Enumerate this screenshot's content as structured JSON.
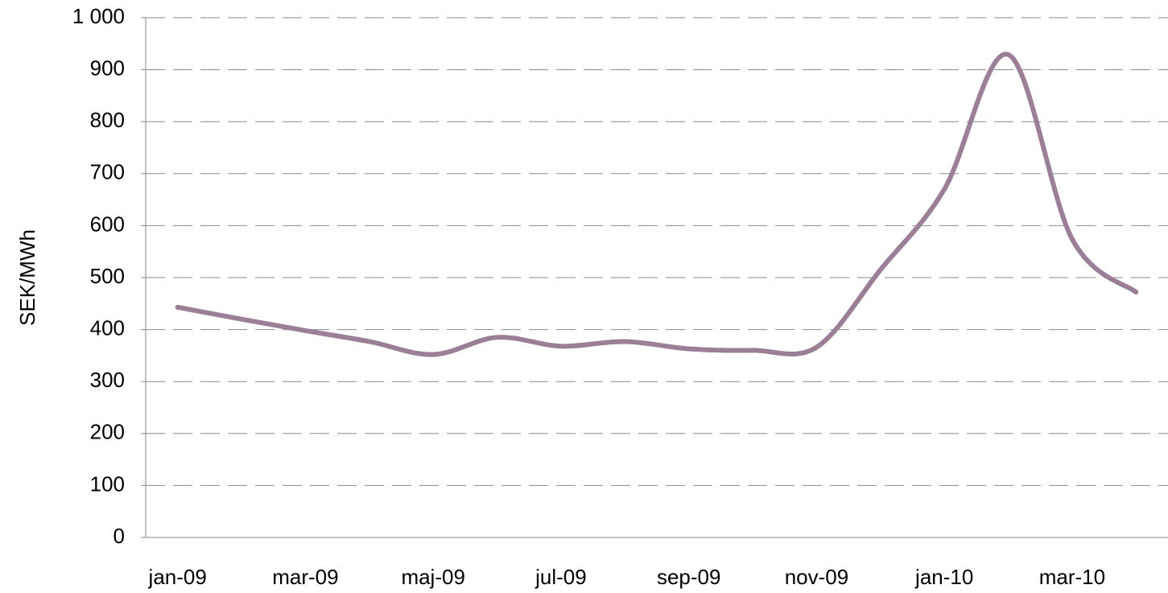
{
  "chart_data": {
    "type": "line",
    "y_label": "SEK/MWh",
    "categories": [
      "jan-09",
      null,
      "mar-09",
      null,
      "maj-09",
      null,
      "jul-09",
      null,
      "sep-09",
      null,
      "nov-09",
      null,
      "jan-10",
      null,
      "mar-10",
      null
    ],
    "values": [
      443,
      420,
      398,
      377,
      352,
      385,
      368,
      377,
      363,
      360,
      366,
      515,
      670,
      929,
      574,
      472
    ],
    "color": "#9a7f97",
    "ylim": [
      0,
      1000
    ],
    "yticks": [
      0,
      100,
      200,
      300,
      400,
      500,
      600,
      700,
      800,
      900,
      {
        "value": 1000,
        "label": "1 000"
      }
    ],
    "grid": true
  }
}
